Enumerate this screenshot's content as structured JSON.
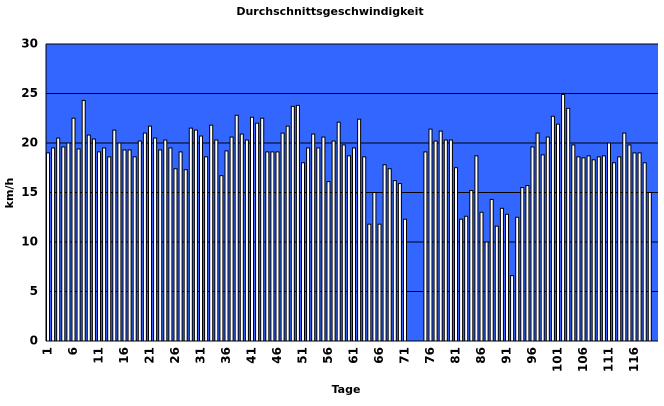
{
  "chart_data": {
    "type": "bar",
    "title": "Durchschnittsgeschwindigkeit",
    "x_label": "Tage",
    "y_label": "km/h",
    "categories": [
      "1",
      null,
      null,
      null,
      null,
      "6",
      null,
      null,
      null,
      null,
      "11",
      null,
      null,
      null,
      null,
      "16",
      null,
      null,
      null,
      null,
      "21",
      null,
      null,
      null,
      null,
      "26",
      null,
      null,
      null,
      null,
      "31",
      null,
      null,
      null,
      null,
      "36",
      null,
      null,
      null,
      null,
      "41",
      null,
      null,
      null,
      null,
      "46",
      null,
      null,
      null,
      null,
      "51",
      null,
      null,
      null,
      null,
      "56",
      null,
      null,
      null,
      null,
      "61",
      null,
      null,
      null,
      null,
      "66",
      null,
      null,
      null,
      null,
      "71",
      null,
      null,
      null,
      null,
      "76",
      null,
      null,
      null,
      null,
      "81",
      null,
      null,
      null,
      null,
      "86",
      null,
      null,
      null,
      null,
      "91",
      null,
      null,
      null,
      null,
      "96",
      null,
      null,
      null,
      null,
      "101",
      null,
      null,
      null,
      null,
      "106",
      null,
      null,
      null,
      null,
      "111",
      null,
      null,
      null,
      null,
      "116",
      null,
      null,
      null
    ],
    "values": [
      19,
      19.5,
      20.5,
      19.6,
      20,
      22.5,
      19.4,
      24.3,
      20.8,
      20.4,
      19.1,
      19.5,
      18.6,
      21.3,
      20,
      19.3,
      19.3,
      18.6,
      20.2,
      21,
      21.7,
      20.5,
      19.3,
      20.3,
      19.5,
      17.4,
      19.1,
      17.3,
      21.5,
      21.3,
      20.7,
      18.6,
      21.8,
      20.3,
      16.7,
      19.2,
      20.6,
      22.8,
      20.9,
      20.3,
      22.6,
      22,
      22.5,
      19.1,
      19.1,
      19.1,
      21,
      21.7,
      23.7,
      23.8,
      18,
      19.5,
      20.9,
      19.5,
      20.6,
      16.1,
      20.2,
      22.1,
      19.8,
      18.7,
      19.5,
      22.4,
      18.6,
      11.8,
      15,
      11.8,
      17.8,
      17.4,
      16.2,
      15.9,
      12.3,
      null,
      null,
      null,
      19.1,
      21.4,
      20.2,
      21.2,
      20.3,
      20.3,
      17.5,
      12.3,
      12.6,
      15.2,
      18.7,
      13,
      10,
      14.3,
      11.6,
      13.4,
      12.8,
      6.6,
      12.5,
      15.5,
      15.7,
      19.6,
      21,
      18.8,
      20.6,
      22.7,
      21.9,
      24.9,
      23.5,
      19.8,
      18.6,
      18.5,
      18.7,
      18.3,
      18.6,
      18.7,
      20,
      18,
      18.6,
      21,
      19.8,
      19,
      19,
      18,
      15
    ],
    "color": "#ffffff",
    "background": "#3366ff",
    "ylim": [
      0,
      30
    ],
    "yticks": [
      0,
      5,
      10,
      15,
      20,
      25,
      30
    ],
    "grid": true
  }
}
